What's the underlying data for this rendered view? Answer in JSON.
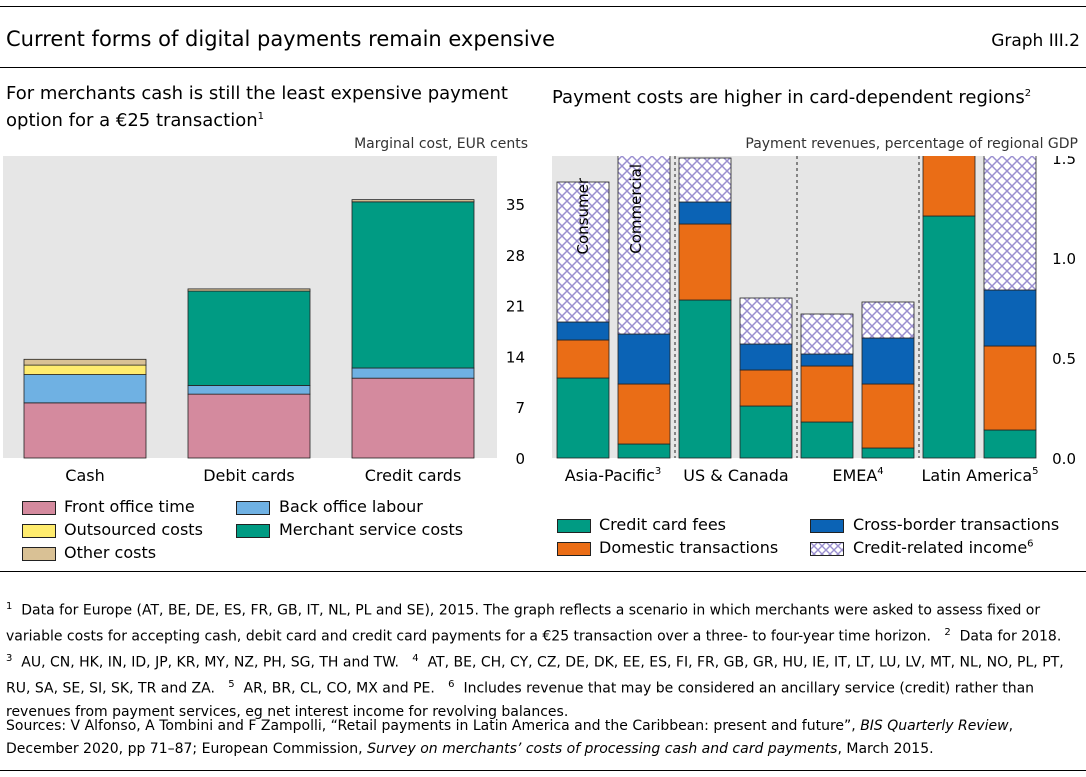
{
  "header": {
    "title": "Current forms of digital payments remain expensive",
    "graph_id": "Graph III.2"
  },
  "left_panel": {
    "title_line1": "For merchants cash is still the least expensive payment",
    "title_line2": "option for a €25 transaction",
    "title_sup": "1",
    "unit": "Marginal cost, EUR cents",
    "legend": [
      {
        "label": "Front office time",
        "color": "#d48a9e"
      },
      {
        "label": "Back office labour",
        "color": "#6fb1e3"
      },
      {
        "label": "Outsourced costs",
        "color": "#ffec6e"
      },
      {
        "label": "Merchant service costs",
        "color": "#009b83"
      },
      {
        "label": "Other costs",
        "color": "#d9c195"
      }
    ]
  },
  "right_panel": {
    "title": "Payment costs are higher in card-dependent regions",
    "title_sup": "2",
    "unit": "Payment revenues, percentage of regional GDP",
    "bar_label_consumer": "Consumer",
    "bar_label_commercial": "Commercial",
    "legend": [
      {
        "label": "Credit card fees",
        "color": "#009b83"
      },
      {
        "label": "Cross-border transactions",
        "color": "#0b63b5"
      },
      {
        "label": "Domestic transactions",
        "color": "#ea6d16"
      },
      {
        "label": "Credit-related income",
        "sup": "6",
        "color": "#9a8fd0"
      }
    ]
  },
  "chart_data": [
    {
      "type": "bar",
      "stacked": true,
      "title": "For merchants cash is still the least expensive payment option for a €25 transaction",
      "ylabel": "Marginal cost, EUR cents",
      "ylim": [
        0,
        35
      ],
      "yticks": [
        0,
        7,
        14,
        21,
        28,
        35
      ],
      "categories": [
        "Cash",
        "Debit cards",
        "Credit cards"
      ],
      "series": [
        {
          "name": "Front office time",
          "color": "#d48a9e",
          "values": [
            7.6,
            8.8,
            11.0
          ]
        },
        {
          "name": "Back office labour",
          "color": "#6fb1e3",
          "values": [
            3.9,
            1.2,
            1.4
          ]
        },
        {
          "name": "Outsourced costs",
          "color": "#ffec6e",
          "values": [
            1.3,
            0.0,
            0.0
          ]
        },
        {
          "name": "Merchant service costs",
          "color": "#009b83",
          "values": [
            0.0,
            13.0,
            22.9
          ]
        },
        {
          "name": "Other costs",
          "color": "#d9c195",
          "values": [
            0.8,
            0.3,
            0.3
          ]
        }
      ]
    },
    {
      "type": "bar",
      "stacked": true,
      "title": "Payment costs are higher in card-dependent regions",
      "ylabel": "Payment revenues, percentage of regional GDP",
      "ylim": [
        0,
        2.8
      ],
      "yticks": [
        0.0,
        0.5,
        1.0,
        1.5,
        2.0,
        2.5
      ],
      "yticklabels": [
        "0.0",
        "0.5",
        "1.0",
        "1.5",
        "2.0",
        "2.5"
      ],
      "groups": [
        {
          "label": "Asia-Pacific",
          "sup": "3",
          "bars": [
            "Consumer",
            "Commercial"
          ]
        },
        {
          "label": "US & Canada",
          "sup": "",
          "bars": [
            "Consumer",
            "Commercial"
          ]
        },
        {
          "label": "EMEA",
          "sup": "4",
          "bars": [
            "Consumer",
            "Commercial"
          ]
        },
        {
          "label": "Latin America",
          "sup": "5",
          "bars": [
            "Consumer",
            "Commercial"
          ]
        }
      ],
      "series": [
        {
          "name": "Credit card fees",
          "color": "#009b83",
          "values": [
            0.4,
            0.07,
            0.79,
            0.26,
            0.18,
            0.05,
            1.21,
            0.14
          ]
        },
        {
          "name": "Domestic transactions",
          "color": "#ea6d16",
          "values": [
            0.19,
            0.3,
            0.38,
            0.18,
            0.28,
            0.32,
            0.74,
            0.42
          ]
        },
        {
          "name": "Cross-border transactions",
          "color": "#0b63b5",
          "values": [
            0.09,
            0.25,
            0.11,
            0.13,
            0.06,
            0.23,
            0.05,
            0.28
          ]
        },
        {
          "name": "Credit-related income",
          "color": "#9a8fd0",
          "hatched": true,
          "values": [
            0.7,
            1.1,
            0.22,
            0.23,
            0.2,
            0.18,
            0.93,
            0.83
          ]
        }
      ]
    }
  ],
  "footnotes": {
    "n1_mark": "1",
    "n1": "Data for Europe (AT, BE, DE, ES, FR, GB, IT, NL, PL and SE), 2015. The graph reflects a scenario in which merchants were asked to assess fixed or variable costs for accepting cash, debit card and credit card payments for a €25 transaction over a three- to four-year time horizon.",
    "n2_mark": "2",
    "n2": "Data for 2018.",
    "n3_mark": "3",
    "n3": "AU, CN, HK, IN, ID, JP, KR, MY, NZ, PH, SG, TH and TW.",
    "n4_mark": "4",
    "n4": "AT, BE, CH, CY, CZ, DE, DK, EE, ES, FI, FR, GB, GR, HU, IE, IT, LT, LU, LV, MT, NL, NO, PL, PT, RU, SA, SE, SI, SK, TR and ZA.",
    "n5_mark": "5",
    "n5": "AR, BR, CL, CO, MX and PE.",
    "n6_mark": "6",
    "n6": "Includes revenue that may be considered an ancillary service (credit) rather than revenues from payment services, eg net interest income for revolving balances."
  },
  "sources": {
    "prefix": "Sources: V Alfonso, A Tombini and F Zampolli, “Retail payments in Latin America and the Caribbean: present and future”,",
    "journal": "BIS Quarterly Review",
    "middle": ", December 2020, pp 71–87; European Commission,",
    "survey": "Survey on merchants’ costs of processing cash and card payments",
    "suffix": ", March 2015."
  }
}
